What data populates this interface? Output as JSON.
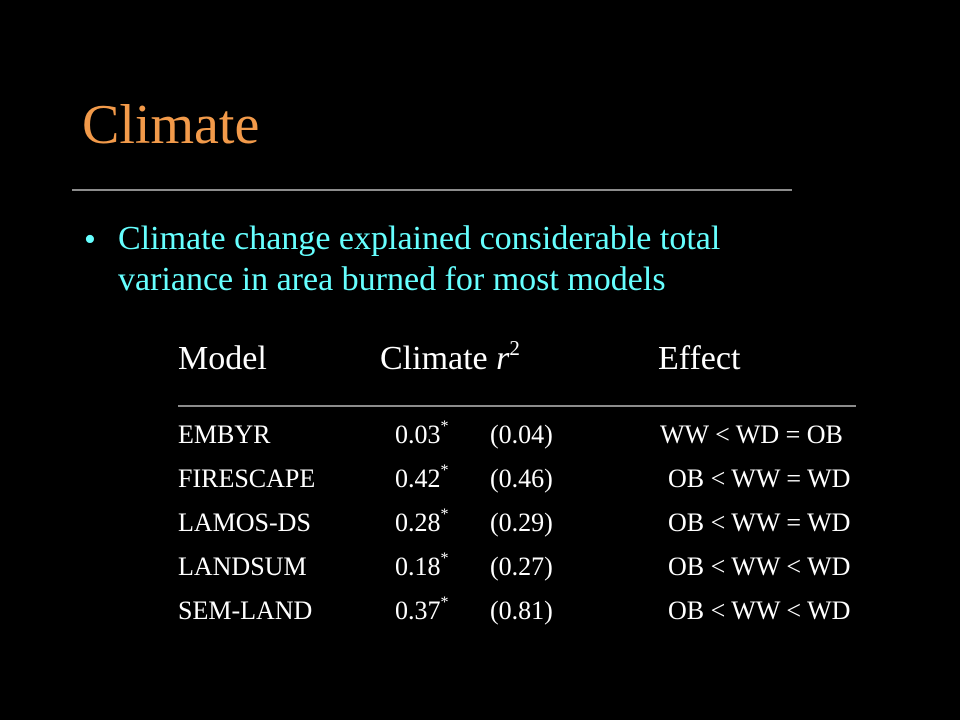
{
  "slide": {
    "title": "Climate",
    "bullet_symbol": "•",
    "bullet_text": "Climate change explained considerable total variance in area burned for most models"
  },
  "table": {
    "headers": {
      "model": "Model",
      "climate_prefix": "Climate ",
      "climate_var": "r",
      "climate_sup": "2",
      "effect": "Effect"
    },
    "rows": [
      {
        "model": "EMBYR",
        "r2": "0.03",
        "mark": "*",
        "paren": "(0.04)",
        "effect": "WW < WD = OB"
      },
      {
        "model": "FIRESCAPE",
        "r2": "0.42",
        "mark": "*",
        "paren": "(0.46)",
        "effect": "OB < WW = WD"
      },
      {
        "model": "LAMOS-DS",
        "r2": "0.28",
        "mark": "*",
        "paren": "(0.29)",
        "effect": "OB < WW = WD"
      },
      {
        "model": "LANDSUM",
        "r2": "0.18",
        "mark": "*",
        "paren": "(0.27)",
        "effect": "OB < WW < WD"
      },
      {
        "model": "SEM-LAND",
        "r2": "0.37",
        "mark": "*",
        "paren": "(0.81)",
        "effect": "OB < WW < WD"
      }
    ]
  },
  "colors": {
    "background": "#000000",
    "title": "#f29a4a",
    "bullet": "#66ffff",
    "table_text": "#ffffff",
    "rule": "#8c8c8c"
  }
}
